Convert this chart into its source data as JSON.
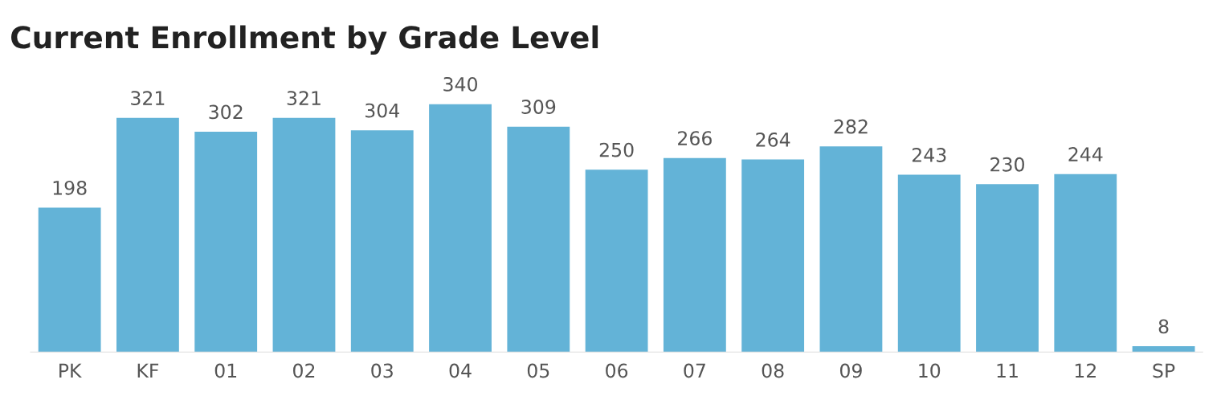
{
  "chart_data": {
    "type": "bar",
    "title": "Current Enrollment by Grade Level",
    "categories": [
      "PK",
      "KF",
      "01",
      "02",
      "03",
      "04",
      "05",
      "06",
      "07",
      "08",
      "09",
      "10",
      "11",
      "12",
      "SP"
    ],
    "values": [
      198,
      321,
      302,
      321,
      304,
      340,
      309,
      250,
      266,
      264,
      282,
      243,
      230,
      244,
      8
    ],
    "color": "#63b3d7",
    "data_labels": true,
    "grid": false,
    "legend": false
  }
}
